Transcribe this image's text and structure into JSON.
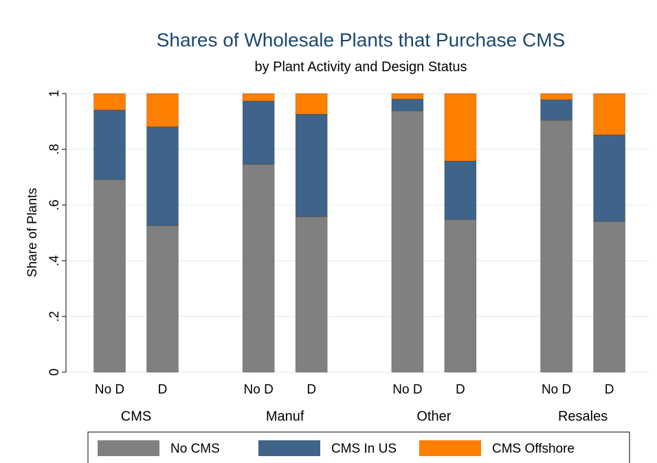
{
  "chart_data": {
    "type": "stacked_bar",
    "title": "Shares of Wholesale Plants that Purchase CMS",
    "subtitle": "by Plant Activity and Design Status",
    "ylabel": "Share of Plants",
    "groups": [
      "CMS",
      "Manuf",
      "Other",
      "Resales"
    ],
    "categories": [
      "No D",
      "D",
      "No D",
      "D",
      "No D",
      "D",
      "No D",
      "D"
    ],
    "series": [
      {
        "name": "No CMS",
        "color": "#808080",
        "values": [
          0.691,
          0.526,
          0.746,
          0.558,
          0.938,
          0.548,
          0.904,
          0.541
        ]
      },
      {
        "name": "CMS In US",
        "color": "#3f6489",
        "values": [
          0.25,
          0.355,
          0.227,
          0.368,
          0.042,
          0.21,
          0.074,
          0.311
        ]
      },
      {
        "name": "CMS Offshore",
        "color": "#ff7f00",
        "values": [
          0.059,
          0.119,
          0.027,
          0.074,
          0.02,
          0.242,
          0.022,
          0.148
        ]
      }
    ],
    "ylim": [
      0,
      1
    ],
    "yticks": [
      0,
      {
        "value": 0.2,
        "label": ".2"
      },
      {
        "value": 0.4,
        "label": ".4"
      },
      {
        "value": 0.6,
        "label": ".6"
      },
      {
        "value": 0.8,
        "label": ".8"
      },
      1
    ],
    "grid": true,
    "legend": "bottom"
  }
}
